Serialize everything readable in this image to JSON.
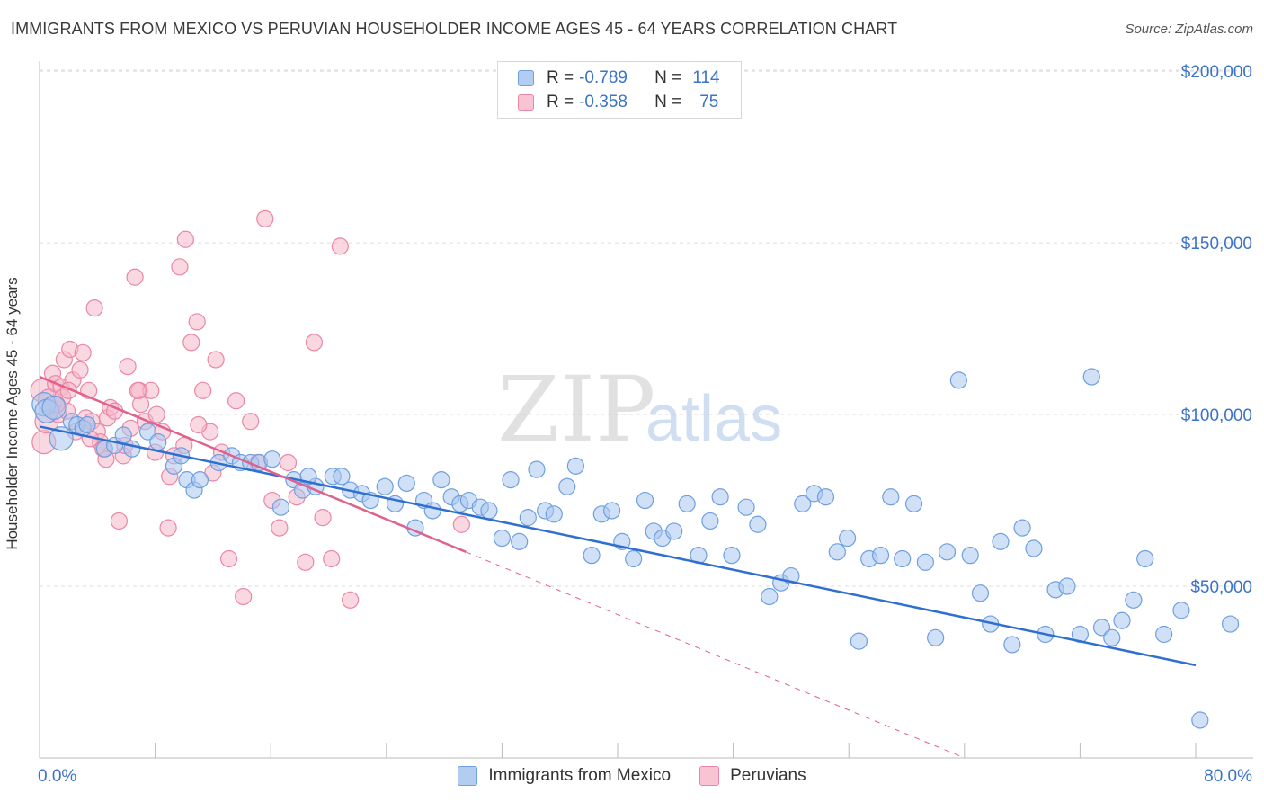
{
  "header": {
    "title": "IMMIGRANTS FROM MEXICO VS PERUVIAN HOUSEHOLDER INCOME AGES 45 - 64 YEARS CORRELATION CHART",
    "source": "Source: ZipAtlas.com"
  },
  "watermark": {
    "zip": "ZIP",
    "atlas": "atlas"
  },
  "legend": {
    "rows": [
      {
        "r_label": "R =",
        "r_value": "-0.789",
        "n_label": "N =",
        "n_value": "114"
      },
      {
        "r_label": "R =",
        "r_value": "-0.358",
        "n_label": "N =",
        "n_value": "75"
      }
    ]
  },
  "bottom_legend": {
    "items": [
      "Immigrants from Mexico",
      "Peruvians"
    ]
  },
  "colors": {
    "blue_fill": "#a9c6ee",
    "blue_stroke": "#6f9fe0",
    "blue_line": "#2f6fcf",
    "pink_fill": "#f6b8cb",
    "pink_stroke": "#ea86a6",
    "pink_line": "#e0618c",
    "tick_label": "#3b73c8",
    "grid": "#dddddd"
  },
  "chart_data": {
    "type": "scatter",
    "title": "IMMIGRANTS FROM MEXICO VS PERUVIAN HOUSEHOLDER INCOME AGES 45 - 64 YEARS CORRELATION CHART",
    "xlabel": "",
    "ylabel": "Householder Income Ages 45 - 64 years",
    "xlim": [
      0,
      80
    ],
    "ylim": [
      0,
      210000
    ],
    "x_tick_labels": [
      "0.0%",
      "80.0%"
    ],
    "y_tick_labels": [
      "$50,000",
      "$100,000",
      "$150,000",
      "$200,000"
    ],
    "y_ticks": [
      50000,
      100000,
      150000,
      200000
    ],
    "grid": true,
    "legend_placement": "top-center",
    "series": [
      {
        "name": "Immigrants from Mexico",
        "color": "#a9c6ee",
        "trend": {
          "x": [
            0,
            80
          ],
          "y": [
            96500,
            27000
          ]
        },
        "points": [
          [
            0.3,
            103000
          ],
          [
            0.5,
            101000
          ],
          [
            1.0,
            102000
          ],
          [
            1.5,
            93000
          ],
          [
            2.2,
            98000
          ],
          [
            2.6,
            97000
          ],
          [
            3.0,
            96000
          ],
          [
            3.3,
            97000
          ],
          [
            4.5,
            90000
          ],
          [
            5.2,
            91000
          ],
          [
            5.8,
            94000
          ],
          [
            6.4,
            90000
          ],
          [
            7.5,
            95000
          ],
          [
            8.2,
            92000
          ],
          [
            9.3,
            85000
          ],
          [
            9.8,
            88000
          ],
          [
            10.2,
            81000
          ],
          [
            10.7,
            78000
          ],
          [
            11.1,
            81000
          ],
          [
            12.4,
            86000
          ],
          [
            13.3,
            88000
          ],
          [
            13.9,
            86000
          ],
          [
            14.6,
            86000
          ],
          [
            15.2,
            86000
          ],
          [
            16.1,
            87000
          ],
          [
            16.7,
            73000
          ],
          [
            17.6,
            81000
          ],
          [
            18.2,
            78000
          ],
          [
            19.1,
            79000
          ],
          [
            20.3,
            82000
          ],
          [
            20.9,
            82000
          ],
          [
            21.5,
            78000
          ],
          [
            22.3,
            77000
          ],
          [
            22.9,
            75000
          ],
          [
            23.9,
            79000
          ],
          [
            24.6,
            74000
          ],
          [
            25.4,
            80000
          ],
          [
            26.0,
            67000
          ],
          [
            26.6,
            75000
          ],
          [
            27.2,
            72000
          ],
          [
            27.8,
            81000
          ],
          [
            28.5,
            76000
          ],
          [
            29.1,
            74000
          ],
          [
            29.7,
            75000
          ],
          [
            30.5,
            73000
          ],
          [
            31.1,
            72000
          ],
          [
            32.0,
            64000
          ],
          [
            32.6,
            81000
          ],
          [
            33.2,
            63000
          ],
          [
            33.8,
            70000
          ],
          [
            34.4,
            84000
          ],
          [
            35.0,
            72000
          ],
          [
            35.6,
            71000
          ],
          [
            36.5,
            79000
          ],
          [
            37.1,
            85000
          ],
          [
            38.2,
            59000
          ],
          [
            38.9,
            71000
          ],
          [
            39.6,
            72000
          ],
          [
            40.3,
            63000
          ],
          [
            41.1,
            58000
          ],
          [
            41.9,
            75000
          ],
          [
            42.5,
            66000
          ],
          [
            43.1,
            64000
          ],
          [
            43.9,
            66000
          ],
          [
            44.8,
            74000
          ],
          [
            45.6,
            59000
          ],
          [
            46.4,
            69000
          ],
          [
            47.1,
            76000
          ],
          [
            47.9,
            59000
          ],
          [
            48.9,
            73000
          ],
          [
            49.7,
            68000
          ],
          [
            50.5,
            47000
          ],
          [
            51.3,
            51000
          ],
          [
            52.0,
            53000
          ],
          [
            52.8,
            74000
          ],
          [
            53.6,
            77000
          ],
          [
            54.4,
            76000
          ],
          [
            55.2,
            60000
          ],
          [
            55.9,
            64000
          ],
          [
            56.7,
            34000
          ],
          [
            57.4,
            58000
          ],
          [
            58.2,
            59000
          ],
          [
            58.9,
            76000
          ],
          [
            59.7,
            58000
          ],
          [
            60.5,
            74000
          ],
          [
            61.3,
            57000
          ],
          [
            62.0,
            35000
          ],
          [
            62.8,
            60000
          ],
          [
            63.6,
            110000
          ],
          [
            64.4,
            59000
          ],
          [
            65.1,
            48000
          ],
          [
            65.8,
            39000
          ],
          [
            66.5,
            63000
          ],
          [
            67.3,
            33000
          ],
          [
            68.0,
            67000
          ],
          [
            68.8,
            61000
          ],
          [
            69.6,
            36000
          ],
          [
            70.3,
            49000
          ],
          [
            71.1,
            50000
          ],
          [
            72.0,
            36000
          ],
          [
            72.8,
            111000
          ],
          [
            73.5,
            38000
          ],
          [
            74.2,
            35000
          ],
          [
            74.9,
            40000
          ],
          [
            75.7,
            46000
          ],
          [
            76.5,
            58000
          ],
          [
            77.8,
            36000
          ],
          [
            79.0,
            43000
          ],
          [
            80.3,
            11000
          ],
          [
            82.4,
            39000
          ],
          [
            18.6,
            82000
          ]
        ]
      },
      {
        "name": "Peruvians",
        "color": "#f6b8cb",
        "trend": {
          "x": [
            0,
            29.5
          ],
          "y": [
            111000,
            60000
          ],
          "dashed_extension": {
            "x": [
              29.5,
              64
            ],
            "y": [
              60000,
              0
            ]
          }
        },
        "points": [
          [
            0.2,
            107000
          ],
          [
            0.3,
            92000
          ],
          [
            0.5,
            98000
          ],
          [
            0.7,
            104000
          ],
          [
            0.9,
            112000
          ],
          [
            1.1,
            109000
          ],
          [
            1.3,
            100000
          ],
          [
            1.5,
            108000
          ],
          [
            1.7,
            116000
          ],
          [
            1.9,
            101000
          ],
          [
            2.1,
            119000
          ],
          [
            2.3,
            110000
          ],
          [
            2.5,
            95000
          ],
          [
            2.8,
            113000
          ],
          [
            3.0,
            118000
          ],
          [
            3.2,
            99000
          ],
          [
            3.4,
            107000
          ],
          [
            3.6,
            98000
          ],
          [
            3.8,
            131000
          ],
          [
            4.0,
            95000
          ],
          [
            4.2,
            92000
          ],
          [
            4.4,
            90000
          ],
          [
            4.7,
            99000
          ],
          [
            4.9,
            102000
          ],
          [
            5.2,
            101000
          ],
          [
            5.5,
            69000
          ],
          [
            5.8,
            88000
          ],
          [
            6.1,
            114000
          ],
          [
            6.3,
            96000
          ],
          [
            6.6,
            140000
          ],
          [
            6.9,
            107000
          ],
          [
            7.3,
            98000
          ],
          [
            7.7,
            107000
          ],
          [
            8.1,
            100000
          ],
          [
            8.5,
            95000
          ],
          [
            8.9,
            67000
          ],
          [
            9.3,
            88000
          ],
          [
            9.7,
            143000
          ],
          [
            10.1,
            151000
          ],
          [
            10.5,
            121000
          ],
          [
            10.9,
            127000
          ],
          [
            11.3,
            107000
          ],
          [
            11.8,
            95000
          ],
          [
            12.2,
            116000
          ],
          [
            12.6,
            89000
          ],
          [
            13.1,
            58000
          ],
          [
            13.6,
            104000
          ],
          [
            14.1,
            47000
          ],
          [
            14.6,
            98000
          ],
          [
            15.1,
            86000
          ],
          [
            15.6,
            157000
          ],
          [
            16.1,
            75000
          ],
          [
            16.6,
            67000
          ],
          [
            17.2,
            86000
          ],
          [
            17.8,
            76000
          ],
          [
            18.4,
            57000
          ],
          [
            19.0,
            121000
          ],
          [
            19.6,
            70000
          ],
          [
            20.2,
            58000
          ],
          [
            20.8,
            149000
          ],
          [
            21.5,
            46000
          ],
          [
            29.2,
            68000
          ],
          [
            1.6,
            105000
          ],
          [
            2.0,
            107000
          ],
          [
            3.5,
            93000
          ],
          [
            4.6,
            87000
          ],
          [
            5.9,
            91000
          ],
          [
            7.0,
            103000
          ],
          [
            8.0,
            89000
          ],
          [
            9.0,
            82000
          ],
          [
            10.0,
            91000
          ],
          [
            11.0,
            97000
          ],
          [
            12.0,
            83000
          ],
          [
            1.2,
            103000
          ],
          [
            6.8,
            107000
          ]
        ]
      }
    ]
  }
}
